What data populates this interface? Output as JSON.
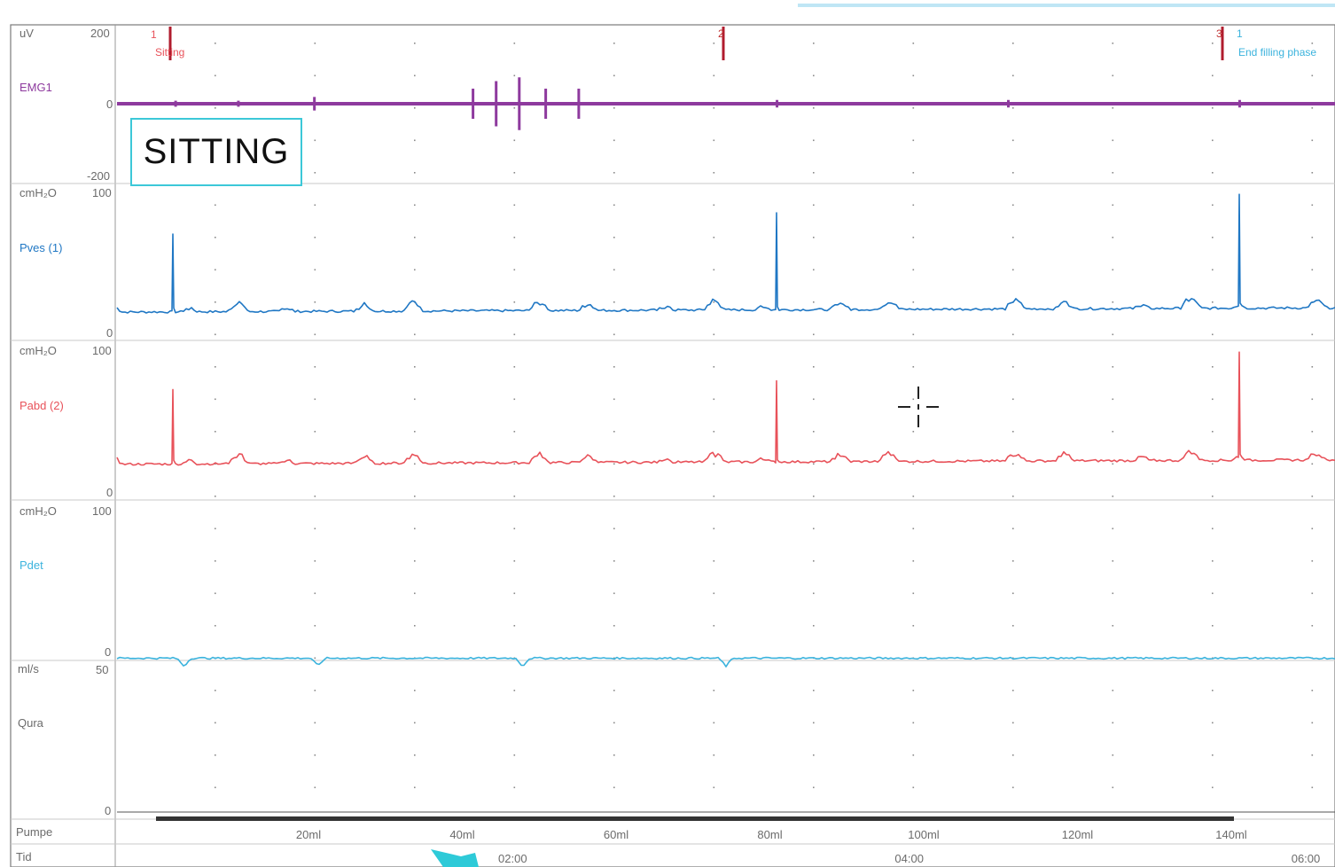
{
  "channels": [
    {
      "unit": "uV",
      "name": "EMG1",
      "top_tick": "200",
      "mid_tick": "0",
      "bottom_tick": "-200",
      "color": "#8e3a9e"
    },
    {
      "unit": "cmH₂O",
      "name": "Pves (1)",
      "top_tick": "100",
      "bottom_tick": "0",
      "color": "#1f77c4"
    },
    {
      "unit": "cmH₂O",
      "name": "Pabd (2)",
      "top_tick": "100",
      "bottom_tick": "0",
      "color": "#e8525a"
    },
    {
      "unit": "cmH₂O",
      "name": "Pdet",
      "top_tick": "100",
      "bottom_tick": "0",
      "color": "#3bb3dd"
    },
    {
      "unit": "ml/s",
      "name": "Qura",
      "top_tick": "50",
      "bottom_tick": "0",
      "color": "#6b6b6b"
    }
  ],
  "events": [
    {
      "number": "1",
      "label": "Sitting",
      "color": "#e8525a"
    },
    {
      "number": "2",
      "label": "",
      "color": "#c03030"
    },
    {
      "number": "3",
      "label": "",
      "color": "#c03030"
    },
    {
      "number": "1",
      "label": "End filling phase",
      "color": "#3bb3dd"
    }
  ],
  "annotation_box": {
    "text": "SITTING",
    "border_color": "#3cc8d8"
  },
  "bottom_rows": {
    "pump_label": "Pumpe",
    "time_label": "Tid",
    "volume_ticks": [
      "20ml",
      "40ml",
      "60ml",
      "80ml",
      "100ml",
      "120ml",
      "140ml"
    ],
    "time_ticks": [
      "02:00",
      "04:00",
      "06:00"
    ]
  },
  "icons": {
    "arrow": "arrow-icon",
    "crosshair": "crosshair-icon"
  },
  "chart_data": {
    "type": "line",
    "title": "",
    "x_unit": "min:sec",
    "x_range": [
      "00:00",
      "06:00"
    ],
    "series": [
      {
        "name": "EMG1",
        "unit": "uV",
        "ylim": [
          -200,
          200
        ],
        "baseline": 0,
        "bursts": [
          {
            "t": "00:18",
            "amp": 8
          },
          {
            "t": "00:37",
            "amp": 8
          },
          {
            "t": "01:00",
            "amp": 18
          },
          {
            "t": "01:48",
            "amp": 40
          },
          {
            "t": "01:55",
            "amp": 60
          },
          {
            "t": "02:02",
            "amp": 70
          },
          {
            "t": "02:10",
            "amp": 40
          },
          {
            "t": "02:20",
            "amp": 40
          },
          {
            "t": "03:20",
            "amp": 10
          },
          {
            "t": "04:30",
            "amp": 10
          },
          {
            "t": "05:40",
            "amp": 10
          }
        ]
      },
      {
        "name": "Pves (1)",
        "unit": "cmH₂O",
        "ylim": [
          0,
          100
        ],
        "baseline": 15,
        "spikes": [
          {
            "t": "00:17",
            "value": 70
          },
          {
            "t": "03:20",
            "value": 85
          },
          {
            "t": "05:40",
            "value": 98
          }
        ]
      },
      {
        "name": "Pabd (2)",
        "unit": "cmH₂O",
        "ylim": [
          0,
          100
        ],
        "baseline": 20,
        "spikes": [
          {
            "t": "00:17",
            "value": 72
          },
          {
            "t": "03:20",
            "value": 78
          },
          {
            "t": "05:40",
            "value": 98
          }
        ]
      },
      {
        "name": "Pdet",
        "unit": "cmH₂O",
        "ylim": [
          0,
          100
        ],
        "baseline": 0
      },
      {
        "name": "Qura",
        "unit": "ml/s",
        "ylim": [
          0,
          50
        ],
        "baseline": 0
      }
    ],
    "volume_axis": [
      20,
      40,
      60,
      80,
      100,
      120,
      140
    ],
    "grid": true
  }
}
